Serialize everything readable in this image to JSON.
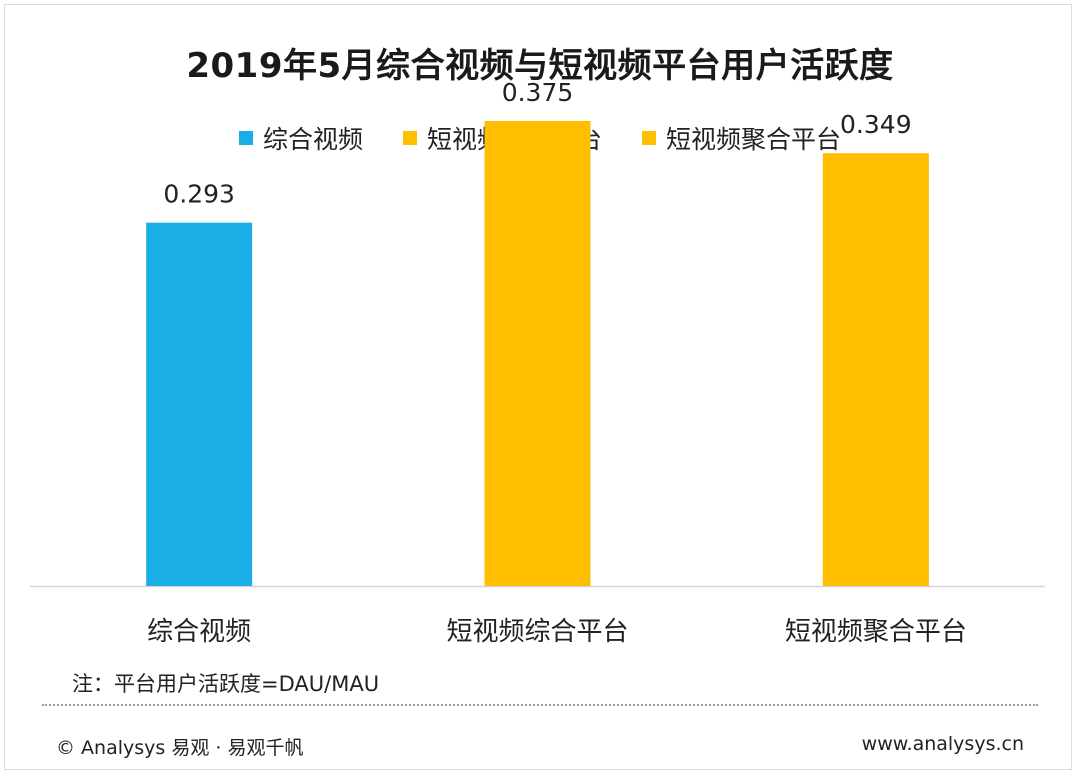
{
  "colors": {
    "blue": "#1AAEE6",
    "yellow": "#FFBE00",
    "axis": "#d6d6d6"
  },
  "legend": [
    {
      "label": "综合视频",
      "color": "#1AAEE6"
    },
    {
      "label": "短视频综合平台",
      "color": "#FFBE00"
    },
    {
      "label": "短视频聚合平台",
      "color": "#FFBE00"
    }
  ],
  "note": "注：平台用户活跃度=DAU/MAU",
  "footer": {
    "left": "© Analysys 易观 · 易观千帆",
    "right": "www.analysys.cn"
  },
  "chart_data": {
    "type": "bar",
    "title": "2019年5月综合视频与短视频平台用户活跃度",
    "categories": [
      "综合视频",
      "短视频综合平台",
      "短视频聚合平台"
    ],
    "values": [
      0.293,
      0.375,
      0.349
    ],
    "value_labels": [
      "0.293",
      "0.375",
      "0.349"
    ],
    "bar_colors": [
      "#1AAEE6",
      "#FFBE00",
      "#FFBE00"
    ],
    "xlabel": "",
    "ylabel": "",
    "ylim": [
      0,
      0.4
    ],
    "grid": false,
    "legend_position": "top-center"
  }
}
